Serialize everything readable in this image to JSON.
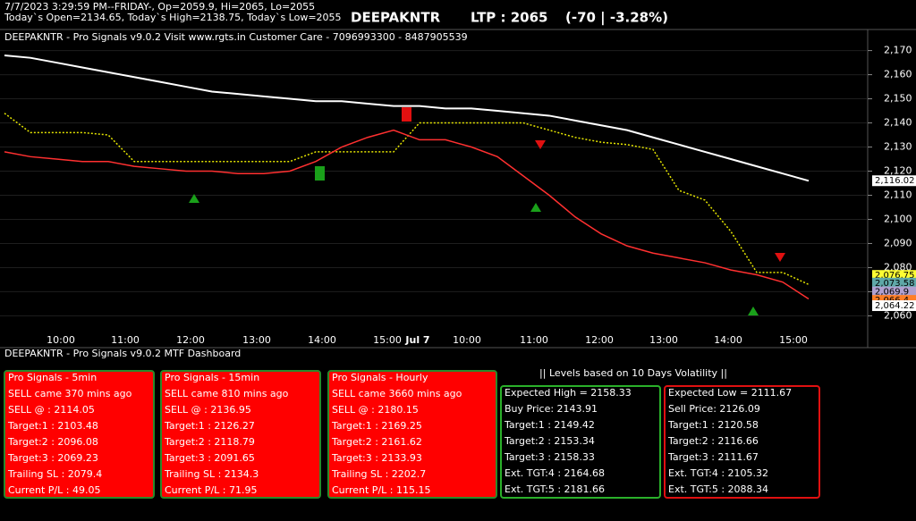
{
  "header": {
    "line1": "7/7/2023 3:29:59 PM--FRIDAY-, Op=2059.9, Hi=2065, Lo=2055",
    "line2": "Today`s Open=2134.65, Today`s High=2138.75, Today`s Low=2055",
    "symbol": "DEEPAKNTR",
    "ltp": "LTP : 2065",
    "change": "(-70 | -3.28%)"
  },
  "chart": {
    "type": "line",
    "subtitle": "DEEPAKNTR - Pro Signals v9.0.2  Visit www.rgts.in Customer Care - 7096993300 - 8487905539",
    "ylim": [
      2052,
      2178
    ],
    "yticks": [
      {
        "value": 2170,
        "label": "2,170"
      },
      {
        "value": 2160,
        "label": "2,160"
      },
      {
        "value": 2150,
        "label": "2,150"
      },
      {
        "value": 2140,
        "label": "2,140"
      },
      {
        "value": 2130,
        "label": "2,130"
      },
      {
        "value": 2120,
        "label": "2,120"
      },
      {
        "value": 2110,
        "label": "2,110"
      },
      {
        "value": 2100,
        "label": "2,100"
      },
      {
        "value": 2090,
        "label": "2,090"
      },
      {
        "value": 2080,
        "label": "2,080"
      },
      {
        "value": 2070,
        "label": "2,070"
      },
      {
        "value": 2060,
        "label": "2,060"
      }
    ],
    "time_labels": [
      "10:00",
      "11:00",
      "12:00",
      "13:00",
      "14:00",
      "15:00",
      "Jul 7",
      "10:00",
      "11:00",
      "12:00",
      "13:00",
      "14:00",
      "15:00"
    ],
    "series": [
      {
        "color": "#ffffff",
        "values": [
          2168,
          2167,
          2165,
          2163,
          2161,
          2159,
          2157,
          2155,
          2153,
          2152,
          2151,
          2150,
          2149,
          2149,
          2148,
          2147,
          2147,
          2146,
          2146,
          2145,
          2144,
          2143,
          2141,
          2139,
          2137,
          2134,
          2131,
          2128,
          2125,
          2122,
          2119,
          2116
        ]
      },
      {
        "color": "#e6e600",
        "values": [
          2144,
          2136,
          2136,
          2136,
          2135,
          2124,
          2124,
          2124,
          2124,
          2124,
          2124,
          2124,
          2128,
          2128,
          2128,
          2128,
          2140,
          2140,
          2140,
          2140,
          2140,
          2137,
          2134,
          2132,
          2131,
          2129,
          2112,
          2108,
          2095,
          2078,
          2078,
          2073
        ]
      },
      {
        "color": "#ff3030",
        "values": [
          2128,
          2126,
          2125,
          2124,
          2124,
          2122,
          2121,
          2120,
          2120,
          2119,
          2119,
          2120,
          2124,
          2130,
          2134,
          2137,
          2133,
          2133,
          2130,
          2126,
          2118,
          2110,
          2101,
          2094,
          2089,
          2086,
          2084,
          2082,
          2079,
          2077,
          2074,
          2067
        ]
      }
    ],
    "price_tags": [
      {
        "value": 2116.02,
        "label": "2,116.02",
        "color": "#ffffff"
      },
      {
        "value": 2076.75,
        "label": "2,076.75",
        "color": "#ffff33"
      },
      {
        "value": 2073.58,
        "label": "2,073.58",
        "color": "#5fa8a8"
      },
      {
        "value": 2069.9,
        "label": "2,069.9",
        "color": "#b0a0d0"
      },
      {
        "value": 2066.4,
        "label": "2,066.4",
        "color": "#ff7f27"
      },
      {
        "value": 2064.22,
        "label": "2,064.22",
        "color": "#ffffff"
      }
    ]
  },
  "dashboard": {
    "title": "DEEPAKNTR - Pro Signals v9.0.2 MTF Dashboard",
    "levels_title": "|| Levels based on 10 Days Volatility ||",
    "panels": [
      {
        "title": "Pro Signals - 5min",
        "rows": [
          "SELL came 370 mins ago",
          " SELL @ : 2114.05",
          "Target:1 : 2103.48",
          "Target:2 : 2096.08",
          "Target:3 : 2069.23",
          "Trailing SL : 2079.4",
          "Current P/L : 49.05"
        ]
      },
      {
        "title": "Pro Signals - 15min",
        "rows": [
          "SELL came 810 mins ago",
          "SELL @ : 2136.95",
          "Target:1 : 2126.27",
          "Target:2 : 2118.79",
          "Target:3 : 2091.65",
          "Trailing SL : 2134.3",
          "Current P/L : 71.95"
        ]
      },
      {
        "title": "Pro Signals - Hourly",
        "rows": [
          "SELL came 3660 mins ago",
          "SELL @ : 2180.15",
          "Target:1 : 2169.25",
          "Target:2 : 2161.62",
          "Target:3 : 2133.93",
          "Trailing SL : 2202.7",
          "Current P/L : 115.15"
        ]
      },
      {
        "title": "Expected High = 2158.33",
        "rows": [
          "Buy Price: 2143.91",
          "Target:1 : 2149.42",
          "Target:2 : 2153.34",
          "Target:3 : 2158.33",
          "Ext. TGT:4 : 2164.68",
          "Ext. TGT:5 : 2181.66"
        ]
      },
      {
        "title": "Expected Low = 2111.67",
        "rows": [
          "Sell Price: 2126.09",
          "Target:1 : 2120.58",
          "Target:2 : 2116.66",
          "Target:3 : 2111.67",
          "Ext. TGT:4 : 2105.32",
          "Ext. TGT:5 : 2088.34"
        ]
      }
    ]
  }
}
